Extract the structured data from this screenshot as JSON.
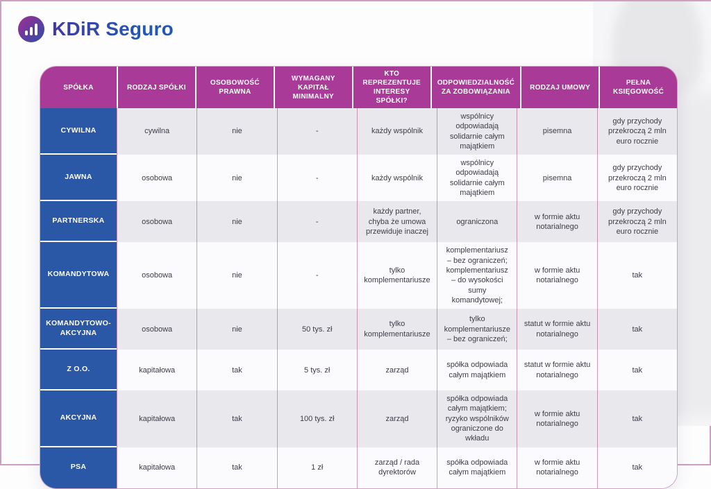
{
  "brand": {
    "name": "KDiR Seguro",
    "icon": "bar-chart-icon",
    "colors": {
      "gradient_from": "#a1308f",
      "gradient_to": "#2b4fa4",
      "text_blue": "#2457b2"
    }
  },
  "colors": {
    "header_magenta": "#a93a98",
    "row_header_blue": "#2b57a7",
    "grid_line_pink": "#ac3c84",
    "row_odd_bg": "#e9e9ed",
    "row_even_bg": "#fbfbfd",
    "body_text": "#3d3d47"
  },
  "table": {
    "columns": [
      "SPÓŁKA",
      "RODZAJ SPÓŁKI",
      "OSOBOWOŚĆ PRAWNA",
      "WYMAGANY KAPITAŁ MINIMALNY",
      "KTO REPREZENTUJE INTERESY SPÓŁKI?",
      "ODPOWIEDZIALNOŚĆ ZA ZOBOWIĄZANIA",
      "RODZAJ UMOWY",
      "PEŁNA KSIĘGOWOŚĆ"
    ],
    "rows": [
      {
        "name": "CYWILNA",
        "cells": [
          "cywilna",
          "nie",
          "-",
          "każdy wspólnik",
          "wspólnicy odpowiadają solidarnie całym majątkiem",
          "pisemna",
          "gdy przychody przekroczą 2 mln euro rocznie"
        ]
      },
      {
        "name": "JAWNA",
        "cells": [
          "osobowa",
          "nie",
          "-",
          "każdy wspólnik",
          "wspólnicy odpowiadają solidarnie całym majątkiem",
          "pisemna",
          "gdy przychody przekroczą 2 mln euro rocznie"
        ]
      },
      {
        "name": "PARTNERSKA",
        "cells": [
          "osobowa",
          "nie",
          "-",
          "każdy partner, chyba że umowa przewiduje inaczej",
          "ograniczona",
          "w formie aktu notarialnego",
          "gdy przychody przekroczą 2 mln euro rocznie"
        ]
      },
      {
        "name": "KOMANDYTOWA",
        "cells": [
          "osobowa",
          "nie",
          "-",
          "tylko komplementariusze",
          "komplementariusz – bez ograniczeń; komplementariusz – do wysokości sumy komandytowej;",
          "w formie aktu notarialnego",
          "tak"
        ]
      },
      {
        "name": "KOMANDYTOWO-AKCYJNA",
        "cells": [
          "osobowa",
          "nie",
          "50 tys. zł",
          "tylko komplementariusze",
          "tylko komplementariusze – bez ograniczeń;",
          "statut w formie aktu notarialnego",
          "tak"
        ]
      },
      {
        "name": "Z O.O.",
        "cells": [
          "kapitałowa",
          "tak",
          "5 tys. zł",
          "zarząd",
          "spółka odpowiada całym majątkiem",
          "statut w formie aktu notarialnego",
          "tak"
        ]
      },
      {
        "name": "AKCYJNA",
        "cells": [
          "kapitałowa",
          "tak",
          "100 tys. zł",
          "zarząd",
          "spółka odpowiada całym majątkiem; ryzyko wspólników ograniczone do wkładu",
          "w formie aktu notarialnego",
          "tak"
        ]
      },
      {
        "name": "PSA",
        "cells": [
          "kapitałowa",
          "tak",
          "1 zł",
          "zarząd / rada dyrektorów",
          "spółka odpowiada całym majątkiem",
          "w formie aktu notarialnego",
          "tak"
        ]
      }
    ]
  }
}
